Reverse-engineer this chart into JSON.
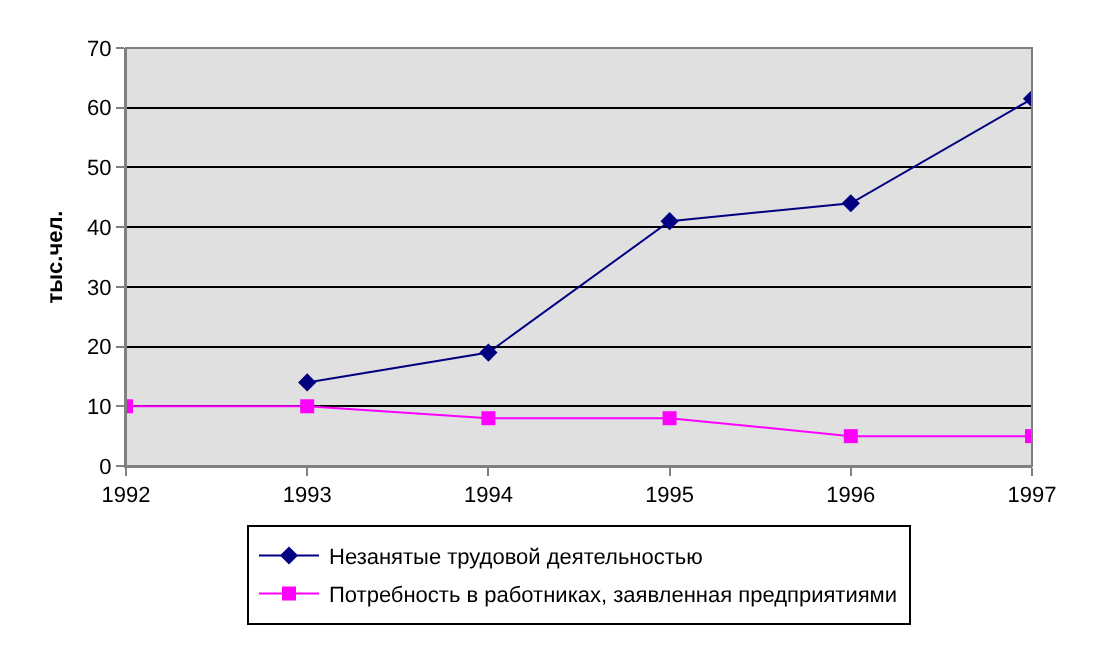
{
  "chart_data": {
    "type": "line",
    "ylabel": "тыс.чел.",
    "x": [
      1992,
      1993,
      1994,
      1995,
      1996,
      1997
    ],
    "xlim": [
      1992,
      1997
    ],
    "xticks": [
      1992,
      1993,
      1994,
      1995,
      1996,
      1997
    ],
    "ylim": [
      0,
      70
    ],
    "yticks": [
      0,
      10,
      20,
      30,
      40,
      50,
      60,
      70
    ],
    "grid": "y",
    "legend": "bottom",
    "series": [
      {
        "name": "Незанятые трудовой деятельностью",
        "color": "#000080",
        "marker": "diamond",
        "values": [
          null,
          14,
          19,
          41,
          44,
          61.5
        ]
      },
      {
        "name": "Потребность в работниках, заявленная предприятиями",
        "color": "#ff00ff",
        "marker": "square",
        "values": [
          10,
          10,
          8,
          8,
          5,
          5
        ]
      }
    ]
  }
}
